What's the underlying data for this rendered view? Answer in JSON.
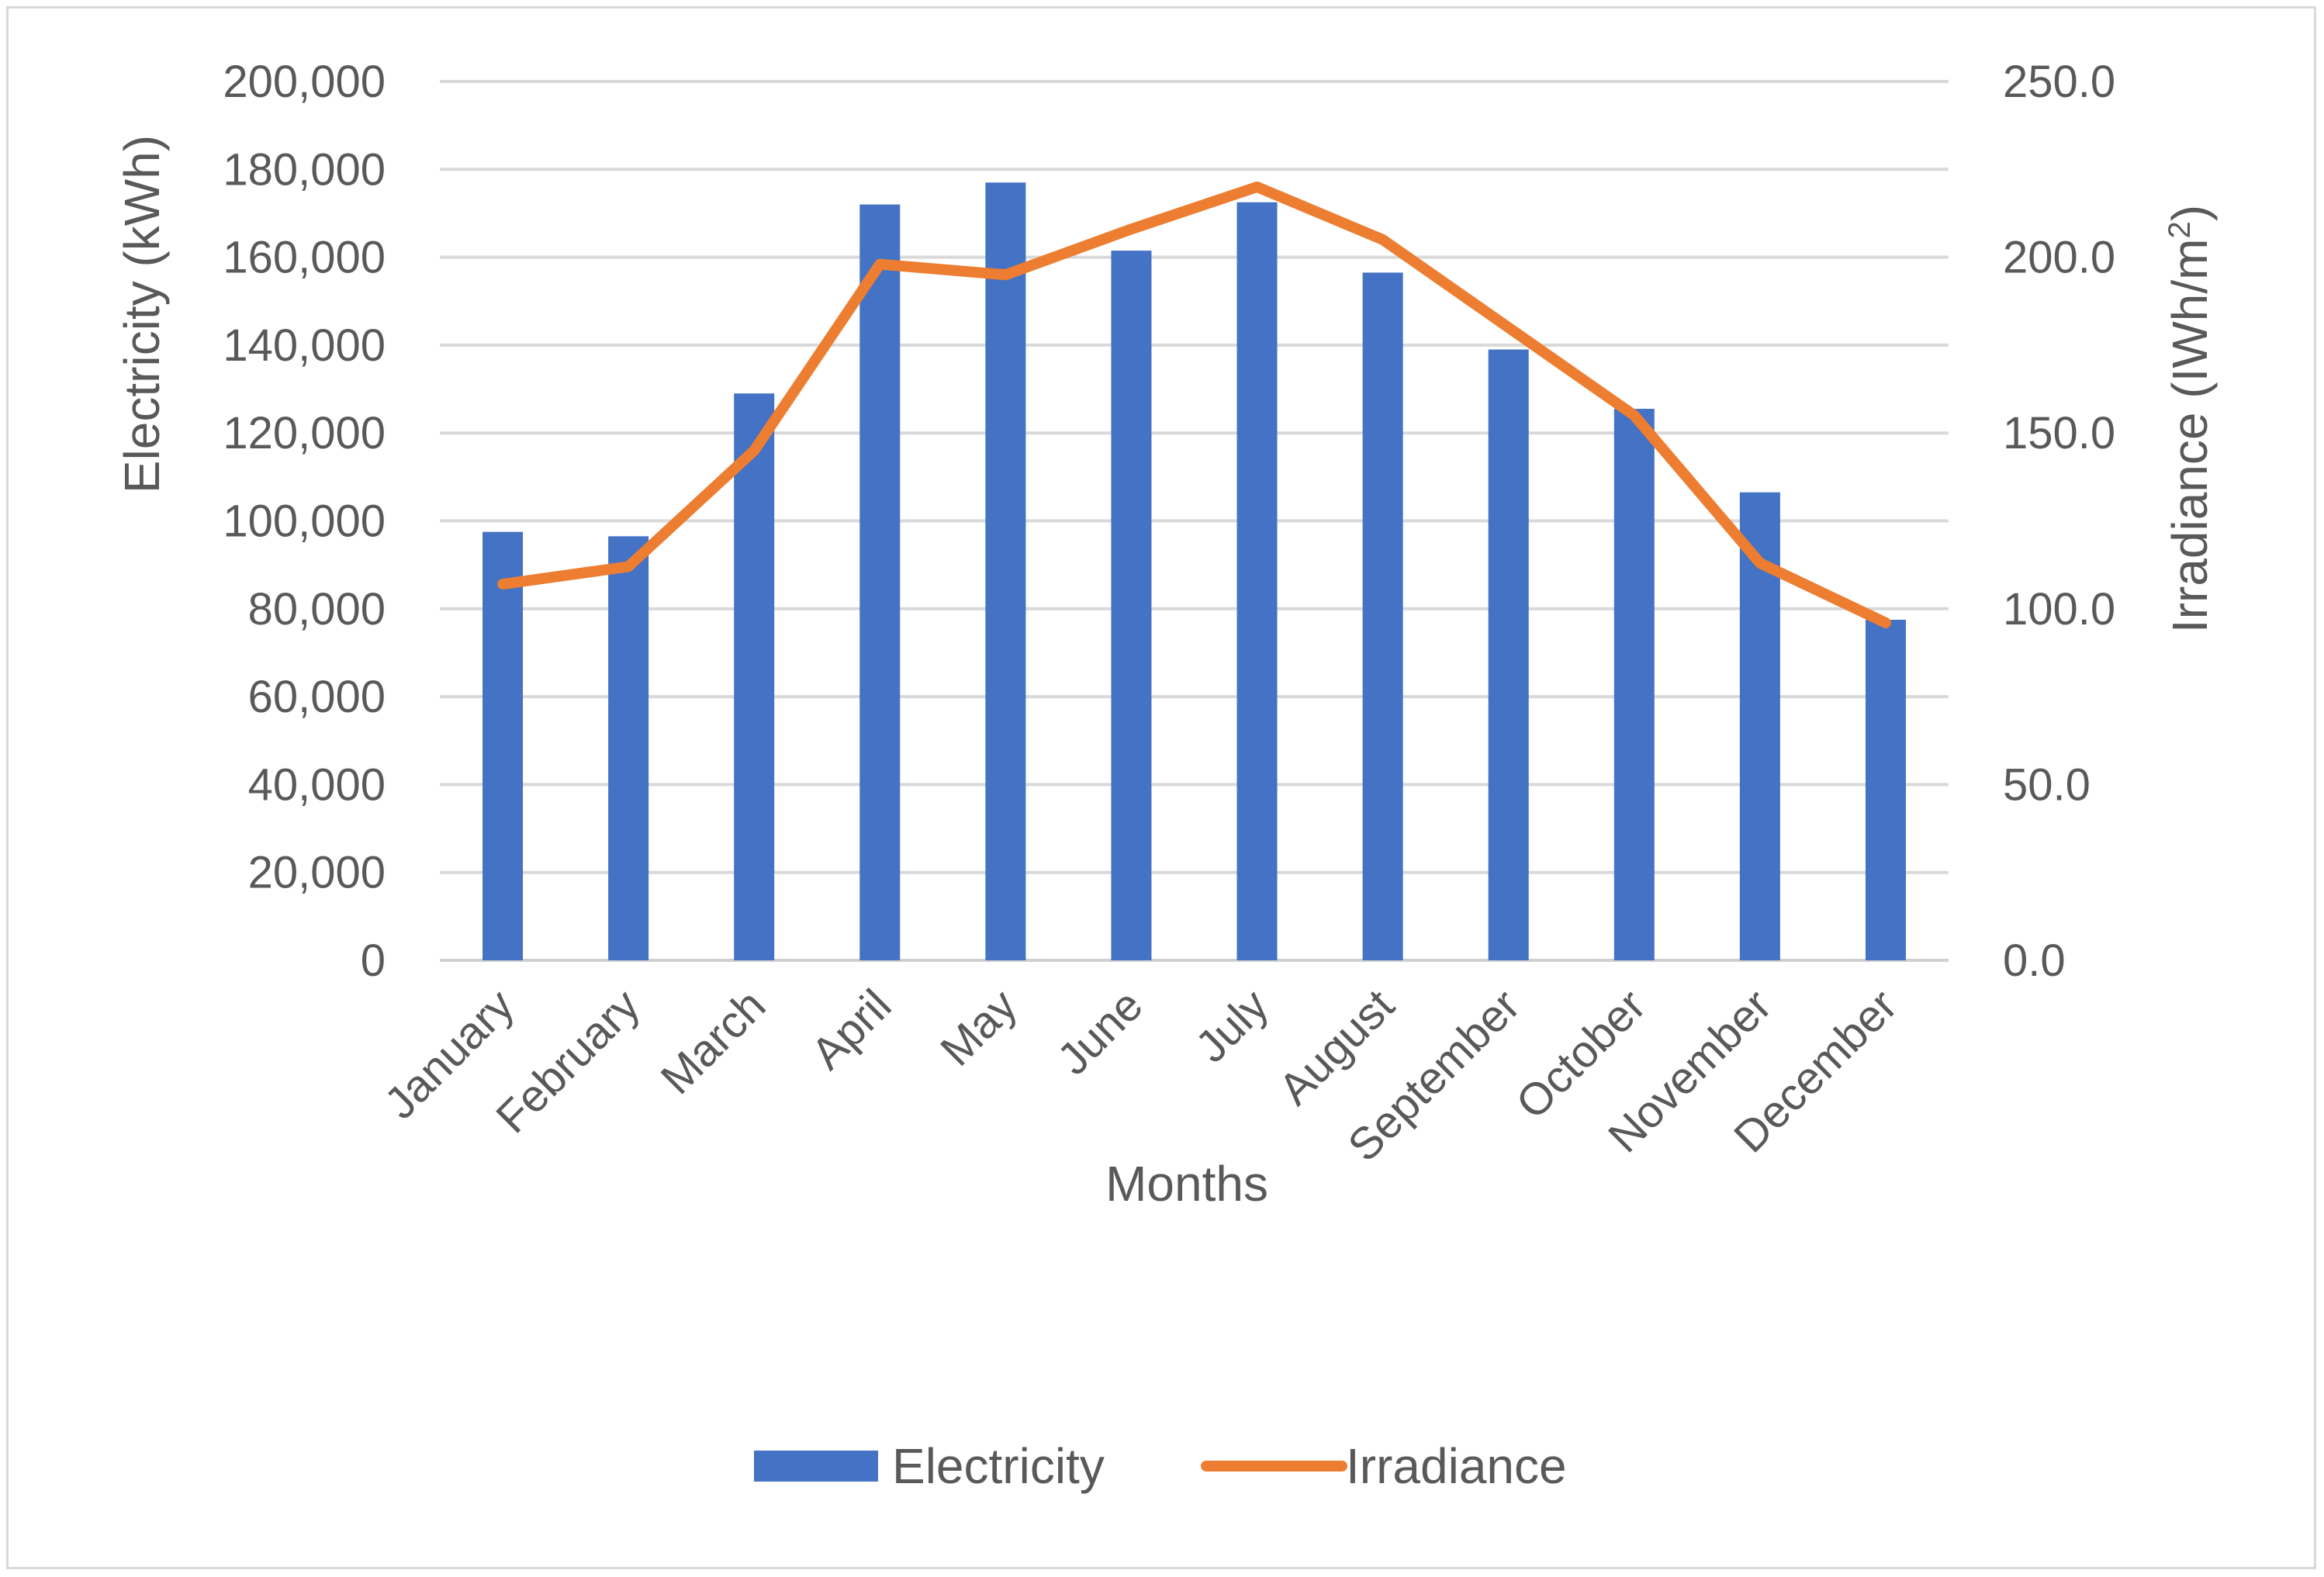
{
  "chart_data": {
    "type": "bar+line",
    "xlabel": "Months",
    "categories": [
      "January",
      "February",
      "March",
      "April",
      "May",
      "June",
      "July",
      "August",
      "September",
      "October",
      "November",
      "December"
    ],
    "y_left": {
      "label": "Electricity (kWh)",
      "lim": [
        0,
        200000
      ],
      "tick_values": [
        0,
        20000,
        40000,
        60000,
        80000,
        100000,
        120000,
        140000,
        160000,
        180000,
        200000
      ],
      "tick_labels": [
        "0",
        "20,000",
        "40,000",
        "60,000",
        "80,000",
        "100,000",
        "120,000",
        "140,000",
        "160,000",
        "180,000",
        "200,000"
      ]
    },
    "y_right": {
      "label_main": "Irradiance (IWh/m",
      "label_sup": "2",
      "label_end": ")",
      "lim": [
        0,
        250
      ],
      "tick_values": [
        0,
        50,
        100,
        150,
        200,
        250
      ],
      "tick_labels": [
        "0.0",
        "50.0",
        "100.0",
        "150.0",
        "200.0",
        "250.0"
      ]
    },
    "grid": true,
    "legend_position": "bottom",
    "series": [
      {
        "name": "Electricity",
        "kind": "bar",
        "axis": "left",
        "color": "#4472c4",
        "values": [
          97500,
          96500,
          129000,
          172000,
          177000,
          161500,
          172500,
          156500,
          139000,
          125500,
          106500,
          77500
        ]
      },
      {
        "name": "Irradiance",
        "kind": "line",
        "axis": "right",
        "color": "#ed7d31",
        "values": [
          107,
          112,
          145,
          198,
          195,
          208,
          220,
          205,
          180,
          155,
          113,
          96
        ]
      }
    ]
  }
}
